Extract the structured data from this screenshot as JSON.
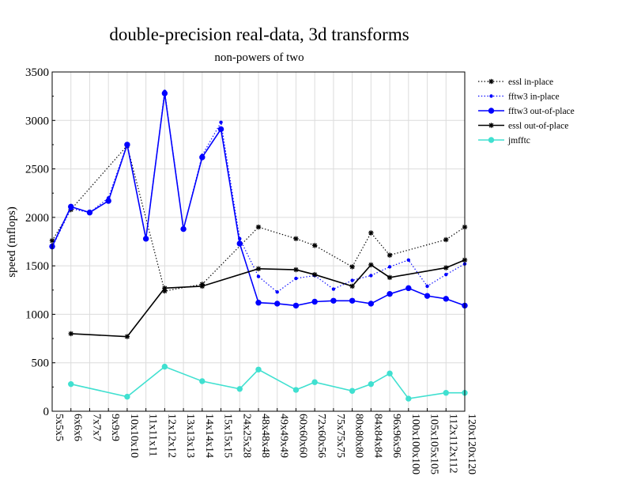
{
  "chart_data": {
    "type": "line",
    "title": "double-precision real-data, 3d transforms",
    "subtitle": "non-powers of two",
    "ylabel": "speed (mflops)",
    "xlabel": "",
    "ylim": [
      0,
      3500
    ],
    "yticks": [
      0,
      500,
      1000,
      1500,
      2000,
      2500,
      3000,
      3500
    ],
    "grid": true,
    "legend_position": "top-right (outside plot)",
    "categories": [
      "5x5x5",
      "6x6x6",
      "7x7x7",
      "9x9x9",
      "10x10x10",
      "11x11x11",
      "12x12x12",
      "13x13x13",
      "14x14x14",
      "15x15x15",
      "24x25x28",
      "48x48x48",
      "49x49x49",
      "60x60x60",
      "72x60x56",
      "75x75x75",
      "80x80x80",
      "84x84x84",
      "96x96x96",
      "100x100x100",
      "105x105x105",
      "112x112x112",
      "120x120x120"
    ],
    "series": [
      {
        "name": "essl in-place",
        "color": "#000000",
        "line": "dotted",
        "marker": "star",
        "values": [
          1760,
          2080,
          null,
          null,
          2740,
          null,
          1240,
          null,
          1310,
          null,
          null,
          1900,
          null,
          1780,
          1710,
          null,
          1490,
          1840,
          1610,
          null,
          null,
          1770,
          1900
        ]
      },
      {
        "name": "fftw3 in-place",
        "color": "#0000ff",
        "line": "dotted",
        "marker": "small-dot",
        "values": [
          1690,
          2090,
          2050,
          2200,
          2760,
          1780,
          3300,
          1880,
          2640,
          2980,
          1780,
          1390,
          1230,
          1370,
          1400,
          1260,
          1350,
          1400,
          1490,
          1560,
          1290,
          1410,
          1520
        ]
      },
      {
        "name": "fftw3 out-of-place",
        "color": "#0000ff",
        "line": "solid",
        "marker": "dot",
        "values": [
          1700,
          2110,
          2050,
          2170,
          2750,
          1780,
          3280,
          1880,
          2620,
          2910,
          1730,
          1120,
          1110,
          1090,
          1130,
          1140,
          1140,
          1110,
          1210,
          1270,
          1190,
          1160,
          1090
        ]
      },
      {
        "name": "essl out-of-place",
        "color": "#000000",
        "line": "solid",
        "marker": "star",
        "values": [
          null,
          800,
          null,
          null,
          770,
          null,
          1270,
          null,
          1290,
          null,
          null,
          1470,
          null,
          1460,
          1410,
          null,
          1290,
          1510,
          1380,
          null,
          null,
          1480,
          1560
        ]
      },
      {
        "name": "jmfftc",
        "color": "#40e0d0",
        "line": "solid",
        "marker": "dot",
        "values": [
          null,
          280,
          null,
          null,
          150,
          null,
          460,
          null,
          310,
          null,
          230,
          430,
          null,
          220,
          300,
          null,
          210,
          280,
          390,
          130,
          null,
          190,
          190
        ]
      }
    ]
  }
}
